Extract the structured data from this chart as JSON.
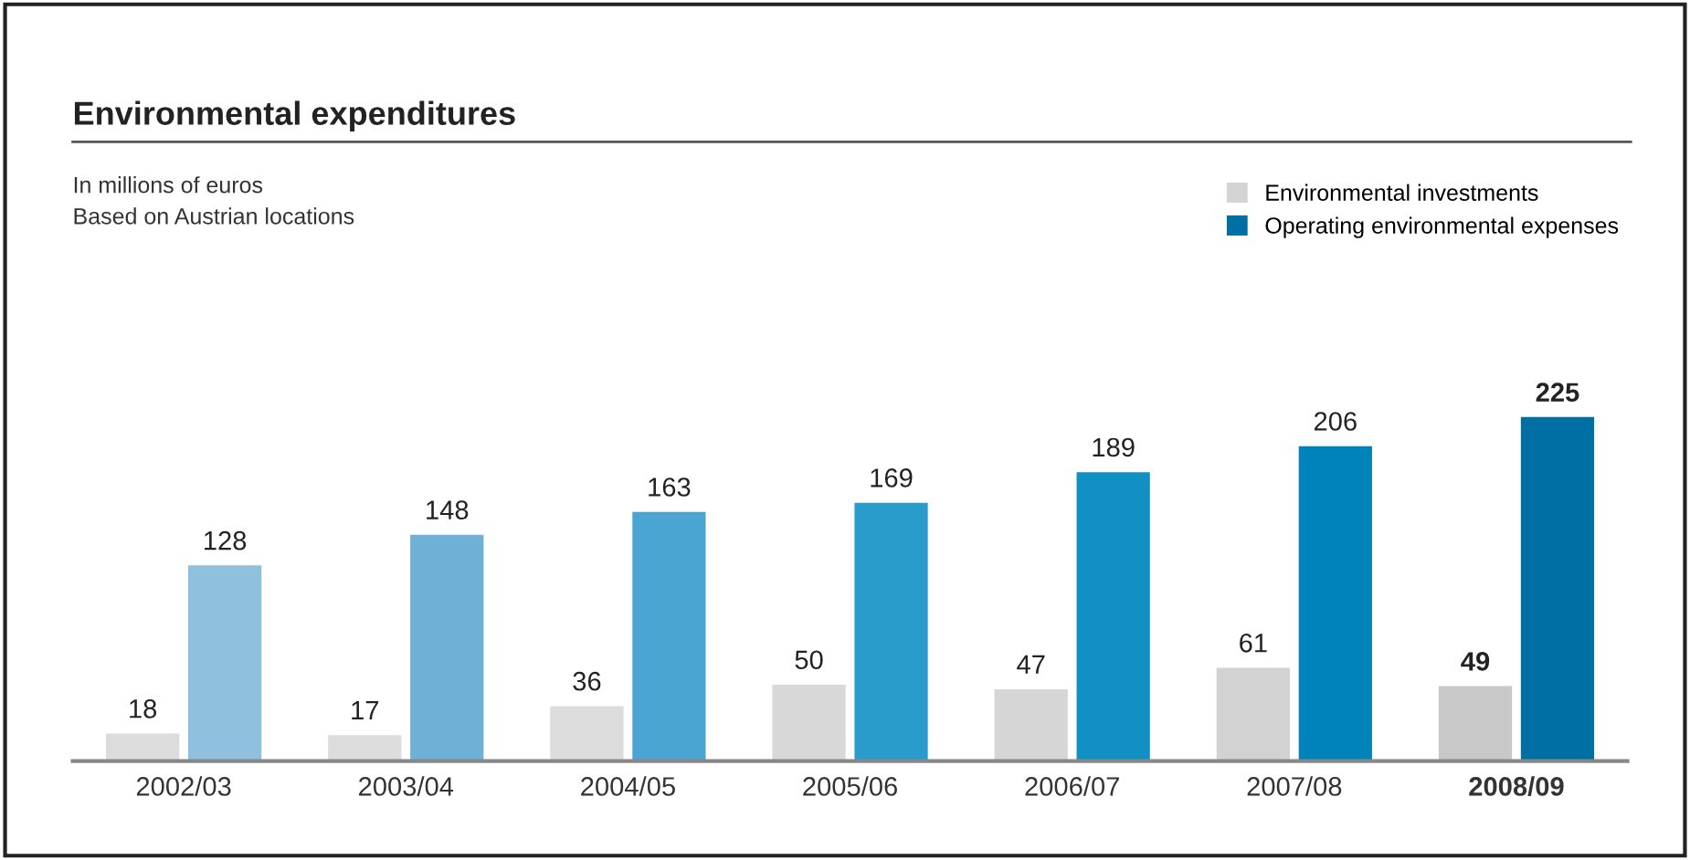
{
  "chart_data": {
    "type": "bar",
    "title": "Environmental expenditures",
    "subtitle": "In millions of euros\nBased on Austrian locations",
    "categories": [
      "2002/03",
      "2003/04",
      "2004/05",
      "2005/06",
      "2006/07",
      "2007/08",
      "2008/09"
    ],
    "series": [
      {
        "name": "Environmental investments",
        "color": "#d4d4d4",
        "colors": [
          "#dcdcdc",
          "#dcdcdc",
          "#dcdcdc",
          "#d8d8d8",
          "#d6d6d6",
          "#d2d2d2",
          "#c8c8c8"
        ],
        "values": [
          18,
          17,
          36,
          50,
          47,
          61,
          49
        ]
      },
      {
        "name": "Operating environmental expenses",
        "color": "#006fa3",
        "colors": [
          "#8fc1de",
          "#6eb0d6",
          "#4ba5d2",
          "#2a9ccc",
          "#1190c4",
          "#0082ba",
          "#006fa3"
        ],
        "values": [
          128,
          148,
          163,
          169,
          189,
          206,
          225
        ]
      }
    ],
    "data_labels": true,
    "legend": "top right"
  }
}
